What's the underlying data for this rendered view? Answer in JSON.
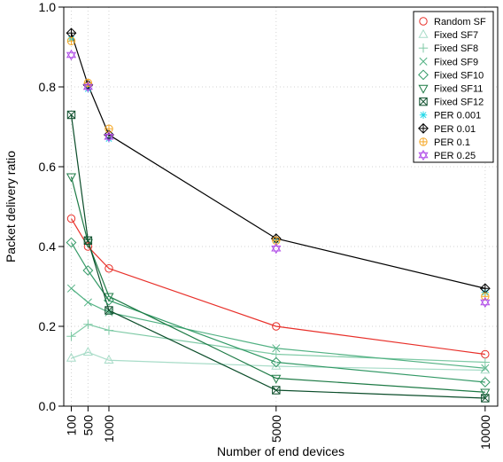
{
  "chart_data": {
    "type": "line",
    "xlabel": "Number of end devices",
    "ylabel": "Packet delivery ratio",
    "x_ticks": [
      100,
      500,
      1000,
      5000,
      10000
    ],
    "y_ticks": [
      "0.0",
      "0.2",
      "0.4",
      "0.6",
      "0.8",
      "1.0"
    ],
    "xlim": [
      -80,
      10300
    ],
    "ylim": [
      0,
      1
    ],
    "grid": true,
    "legend_position": "top-right",
    "series": [
      {
        "name": "Random SF",
        "color": "#e8302a",
        "marker": "circle",
        "line": true,
        "x": [
          100,
          500,
          1000,
          5000,
          10000
        ],
        "y": [
          0.47,
          0.4,
          0.345,
          0.2,
          0.13
        ]
      },
      {
        "name": "Fixed SF7",
        "color": "#a8dcc8",
        "marker": "triangle-up",
        "line": true,
        "x": [
          100,
          500,
          1000,
          5000,
          10000
        ],
        "y": [
          0.12,
          0.135,
          0.115,
          0.1,
          0.09
        ]
      },
      {
        "name": "Fixed SF8",
        "color": "#7fcaa6",
        "marker": "plus",
        "line": true,
        "x": [
          100,
          500,
          1000,
          5000,
          10000
        ],
        "y": [
          0.175,
          0.205,
          0.19,
          0.13,
          0.11
        ]
      },
      {
        "name": "Fixed SF9",
        "color": "#52b183",
        "marker": "x",
        "line": true,
        "x": [
          100,
          500,
          1000,
          5000,
          10000
        ],
        "y": [
          0.295,
          0.26,
          0.235,
          0.145,
          0.095
        ]
      },
      {
        "name": "Fixed SF10",
        "color": "#339966",
        "marker": "diamond",
        "line": true,
        "x": [
          100,
          500,
          1000,
          5000,
          10000
        ],
        "y": [
          0.41,
          0.34,
          0.265,
          0.11,
          0.06
        ]
      },
      {
        "name": "Fixed SF11",
        "color": "#1d7a45",
        "marker": "triangle-down",
        "line": true,
        "x": [
          100,
          500,
          1000,
          5000,
          10000
        ],
        "y": [
          0.575,
          0.41,
          0.275,
          0.07,
          0.035
        ]
      },
      {
        "name": "Fixed SF12",
        "color": "#0b4d2a",
        "marker": "square-x",
        "line": true,
        "x": [
          100,
          500,
          1000,
          5000,
          10000
        ],
        "y": [
          0.73,
          0.415,
          0.24,
          0.04,
          0.02
        ]
      },
      {
        "name": "PER 0.001",
        "color": "#22d8e8",
        "marker": "asterisk",
        "line": false,
        "x": [
          100,
          500,
          1000,
          5000,
          10000
        ],
        "y": [
          0.92,
          0.795,
          0.67,
          0.415,
          0.285
        ]
      },
      {
        "name": "PER 0.01",
        "color": "#000000",
        "marker": "diamond-plus",
        "line": true,
        "x": [
          100,
          500,
          1000,
          5000,
          10000
        ],
        "y": [
          0.935,
          0.805,
          0.68,
          0.42,
          0.295
        ]
      },
      {
        "name": "PER 0.1",
        "color": "#f5a623",
        "marker": "circle-plus",
        "line": false,
        "x": [
          100,
          500,
          1000,
          5000,
          10000
        ],
        "y": [
          0.915,
          0.81,
          0.695,
          0.415,
          0.275
        ]
      },
      {
        "name": "PER 0.25",
        "color": "#b14ee8",
        "marker": "star-of-david",
        "line": false,
        "x": [
          100,
          500,
          1000,
          5000,
          10000
        ],
        "y": [
          0.88,
          0.8,
          0.675,
          0.395,
          0.26
        ]
      }
    ]
  }
}
